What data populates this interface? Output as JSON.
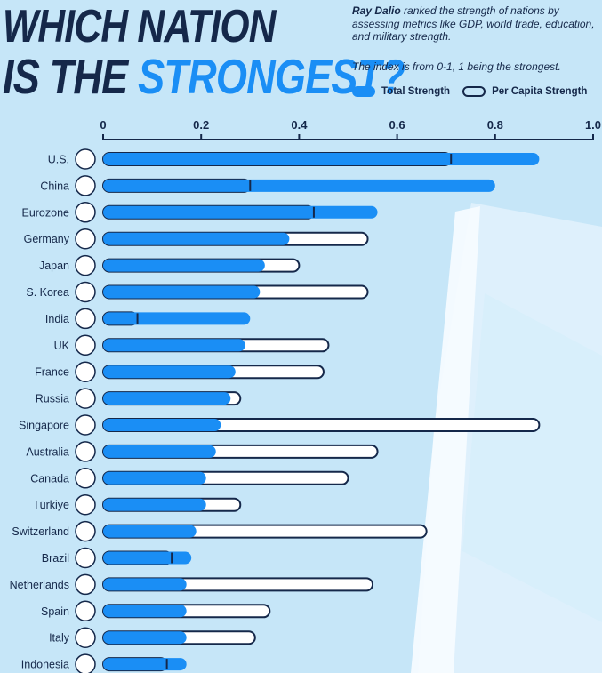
{
  "header": {
    "title_line1": "WHICH NATION",
    "title_line2_a": "IS THE ",
    "title_line2_b": "STRONGEST?",
    "source_name": "Ray Dalio",
    "description": "ranked the strength of nations by assessing metrics like GDP, world trade, education, and military strength.",
    "index_note": "The index is from 0-1, 1 being the strongest.",
    "legend_total": "Total Strength",
    "legend_capita": "Per Capita Strength"
  },
  "colors": {
    "total": "#1a8ef5",
    "outline": "#15284a",
    "text": "#15284a",
    "background": "#c6e6f8"
  },
  "chart_data": {
    "type": "bar",
    "orientation": "horizontal",
    "xlim": [
      0,
      1
    ],
    "ticks": [
      "0",
      "0.2",
      "0.4",
      "0.6",
      "0.8",
      "1.0"
    ],
    "tick_values": [
      0,
      0.2,
      0.4,
      0.6,
      0.8,
      1.0
    ],
    "categories": [
      "U.S.",
      "China",
      "Eurozone",
      "Germany",
      "Japan",
      "S. Korea",
      "India",
      "UK",
      "France",
      "Russia",
      "Singapore",
      "Australia",
      "Canada",
      "Türkiye",
      "Switzerland",
      "Brazil",
      "Netherlands",
      "Spain",
      "Italy",
      "Indonesia"
    ],
    "series": [
      {
        "name": "Total Strength",
        "values": [
          0.89,
          0.8,
          0.56,
          0.38,
          0.33,
          0.32,
          0.3,
          0.29,
          0.27,
          0.26,
          0.24,
          0.23,
          0.21,
          0.21,
          0.19,
          0.18,
          0.17,
          0.17,
          0.17,
          0.17
        ]
      },
      {
        "name": "Per Capita Strength",
        "values": [
          0.71,
          0.3,
          0.43,
          0.54,
          0.4,
          0.54,
          0.07,
          0.46,
          0.45,
          0.28,
          0.89,
          0.56,
          0.5,
          0.28,
          0.66,
          0.14,
          0.55,
          0.34,
          0.31,
          0.13
        ]
      }
    ],
    "flag_icons": [
      "us-flag-icon",
      "china-flag-icon",
      "eu-flag-icon",
      "germany-flag-icon",
      "japan-flag-icon",
      "south-korea-flag-icon",
      "india-flag-icon",
      "uk-flag-icon",
      "france-flag-icon",
      "russia-flag-icon",
      "singapore-flag-icon",
      "australia-flag-icon",
      "canada-flag-icon",
      "turkey-flag-icon",
      "switzerland-flag-icon",
      "brazil-flag-icon",
      "netherlands-flag-icon",
      "spain-flag-icon",
      "italy-flag-icon",
      "indonesia-flag-icon"
    ]
  }
}
